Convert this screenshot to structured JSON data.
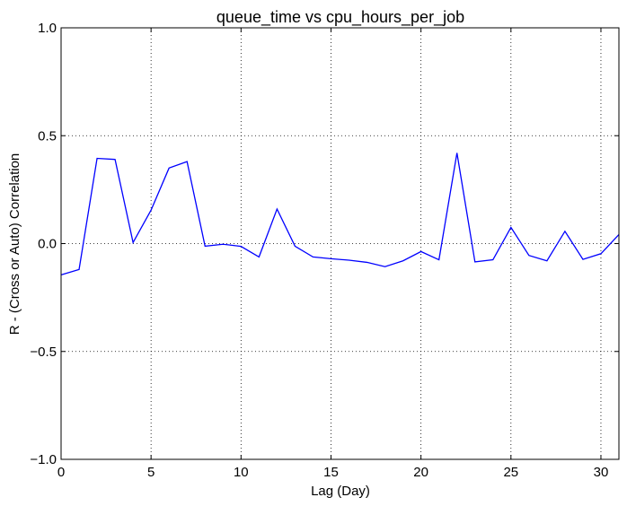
{
  "chart_data": {
    "type": "line",
    "title": "queue_time vs cpu_hours_per_job",
    "xlabel": "Lag (Day)",
    "ylabel": "R - (Cross or Auto) Correlation",
    "xlim": [
      0,
      31
    ],
    "ylim": [
      -1.0,
      1.0
    ],
    "grid": true,
    "x_ticks": [
      0,
      5,
      10,
      15,
      20,
      25,
      30
    ],
    "x_tick_labels": [
      "0",
      "5",
      "10",
      "15",
      "20",
      "25",
      "30"
    ],
    "y_ticks": [
      -1.0,
      -0.5,
      0.0,
      0.5,
      1.0
    ],
    "y_tick_labels": [
      "−1.0",
      "−0.5",
      "0.0",
      "0.5",
      "1.0"
    ],
    "series": [
      {
        "color": "#0000ff",
        "x": [
          0,
          1,
          2,
          3,
          4,
          5,
          6,
          7,
          8,
          9,
          10,
          11,
          12,
          13,
          14,
          15,
          16,
          17,
          18,
          19,
          20,
          21,
          22,
          23,
          24,
          25,
          26,
          27,
          28,
          29,
          30,
          31
        ],
        "y": [
          -0.145,
          -0.12,
          0.395,
          0.39,
          0.005,
          0.155,
          0.35,
          0.38,
          -0.012,
          -0.003,
          -0.013,
          -0.062,
          0.16,
          -0.012,
          -0.062,
          -0.07,
          -0.077,
          -0.087,
          -0.107,
          -0.08,
          -0.037,
          -0.075,
          0.42,
          -0.085,
          -0.075,
          0.075,
          -0.055,
          -0.08,
          0.057,
          -0.073,
          -0.047,
          0.042
        ]
      }
    ]
  }
}
